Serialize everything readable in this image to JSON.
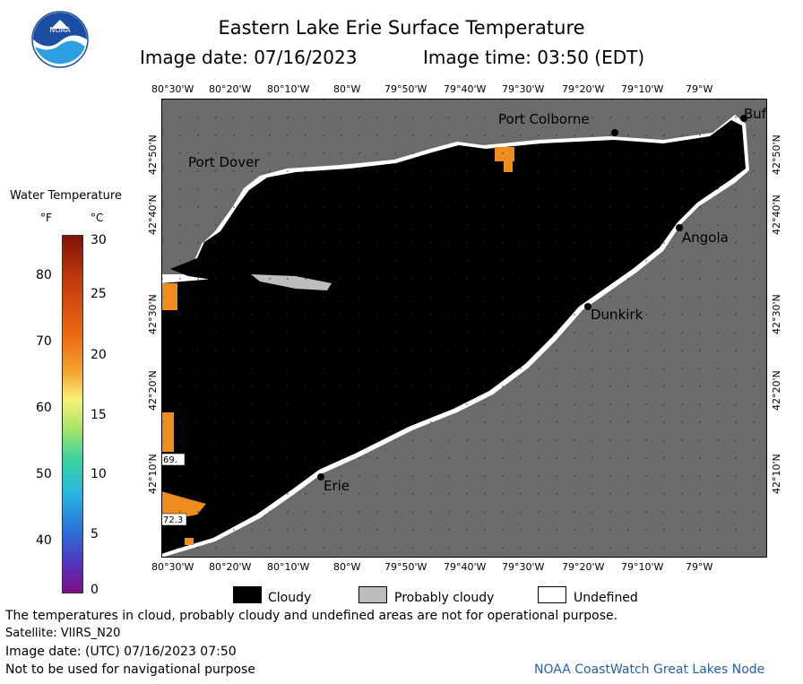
{
  "header": {
    "title": "Eastern Lake Erie Surface Temperature",
    "image_date": "Image date: 07/16/2023",
    "image_time": "Image time: 03:50 (EDT)"
  },
  "logo": {
    "text": "NOAA"
  },
  "scale": {
    "title": "Water Temperature",
    "unit_f": "°F",
    "unit_c": "°C",
    "f_ticks": [
      "80",
      "70",
      "60",
      "50",
      "40"
    ],
    "c_ticks": [
      "30",
      "25",
      "20",
      "15",
      "10",
      "5",
      "0"
    ]
  },
  "axes": {
    "lon_ticks": [
      "80°30'W",
      "80°20'W",
      "80°10'W",
      "80°W",
      "79°50'W",
      "79°40'W",
      "79°30'W",
      "79°20'W",
      "79°10'W",
      "79°W"
    ],
    "lat_ticks": [
      "42°50'N",
      "42°40'N",
      "42°30'N",
      "42°20'N",
      "42°10'N"
    ]
  },
  "places": {
    "port_colborne": "Port Colborne",
    "buffalo": "Buf",
    "port_dover": "Port Dover",
    "angola": "Angola",
    "dunkirk": "Dunkirk",
    "erie": "Erie"
  },
  "readings": {
    "t1": "69.",
    "t2": "72.3"
  },
  "legend": {
    "cloudy": "Cloudy",
    "probably_cloudy": "Probably cloudy",
    "undefined": "Undefined",
    "colors": {
      "cloudy": "#000000",
      "probably_cloudy": "#bdbdbd",
      "undefined": "#ffffff",
      "land": "#6b6b6b",
      "warm_water": "#f08c1e"
    }
  },
  "footer": {
    "disclaimer": "The temperatures in cloud, probably cloudy and undefined areas are not for operational purpose.",
    "satellite": "Satellite: VIIRS_N20",
    "utc_date": "Image date: (UTC) 07/16/2023  07:50",
    "nav_warning": "Not to be used for navigational purpose",
    "credit": "NOAA CoastWatch Great Lakes Node"
  }
}
